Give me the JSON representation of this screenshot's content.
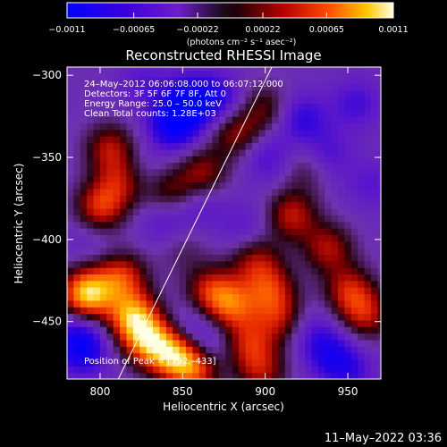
{
  "chart_data": {
    "type": "heatmap",
    "title": "Reconstructed RHESSI Image",
    "xlabel": "Heliocentric X (arcsec)",
    "ylabel": "Heliocentric Y (arcsec)",
    "xlim": [
      780,
      970
    ],
    "ylim": [
      -485,
      -295
    ],
    "x_ticks": [
      800,
      850,
      900,
      950
    ],
    "y_ticks": [
      -300,
      -350,
      -400,
      -450
    ],
    "colorbar": {
      "ticks": [
        -0.0011,
        -0.00065,
        -0.00022,
        0.00022,
        0.00065,
        0.0011
      ],
      "tick_labels": [
        "-0.0011",
        "-0.00065",
        "-0.00022",
        "0.00022",
        "0.00065",
        "0.0011"
      ],
      "units": "(photons cm⁻² s⁻¹ asec⁻²)",
      "range": [
        -0.0011,
        0.0011
      ]
    },
    "annotations": [
      "24–May–2012 06:06:08.000 to 06:07:12.000",
      "Detectors: 3F 5F 6F 7F 8F, Att 0",
      "Energy Range: 25.0 – 50.0 keV",
      "Clean     Total counts: 1.28E+03"
    ],
    "peak_label": "Position of Peak = [792,–433]",
    "peak": [
      792,
      -433
    ],
    "limb_line": [
      [
        811,
        -485
      ],
      [
        904,
        -295
      ]
    ],
    "features": [
      {
        "x": 792,
        "y": -433,
        "value": 0.0011
      },
      {
        "x": 820,
        "y": -447,
        "value": 0.0009
      },
      {
        "x": 830,
        "y": -462,
        "value": 0.0008
      },
      {
        "x": 845,
        "y": -470,
        "value": 0.00075
      },
      {
        "x": 858,
        "y": -478,
        "value": 0.0007
      },
      {
        "x": 813,
        "y": -423,
        "value": 0.0006
      },
      {
        "x": 800,
        "y": -380,
        "value": 0.0006
      },
      {
        "x": 814,
        "y": -364,
        "value": 0.0005
      },
      {
        "x": 806,
        "y": -344,
        "value": 0.00045
      },
      {
        "x": 842,
        "y": -372,
        "value": 0.00035
      },
      {
        "x": 862,
        "y": -359,
        "value": 0.0004
      },
      {
        "x": 882,
        "y": -335,
        "value": 0.0004
      },
      {
        "x": 900,
        "y": -320,
        "value": 0.0003
      },
      {
        "x": 916,
        "y": -385,
        "value": 0.0005
      },
      {
        "x": 938,
        "y": -405,
        "value": 0.00045
      },
      {
        "x": 951,
        "y": -431,
        "value": 0.0005
      },
      {
        "x": 961,
        "y": -446,
        "value": 0.00045
      },
      {
        "x": 894,
        "y": -412,
        "value": 0.0004
      },
      {
        "x": 903,
        "y": -430,
        "value": 0.0005
      },
      {
        "x": 909,
        "y": -448,
        "value": 0.0004
      },
      {
        "x": 880,
        "y": -440,
        "value": 0.0006
      },
      {
        "x": 867,
        "y": -431,
        "value": 0.0005
      },
      {
        "x": 890,
        "y": -463,
        "value": 0.00045
      },
      {
        "x": 898,
        "y": -480,
        "value": 0.0004
      },
      {
        "x": 925,
        "y": -356,
        "value": 0.0002
      },
      {
        "x": 850,
        "y": -405,
        "value": 0.0001
      },
      {
        "x": 826,
        "y": -305,
        "value": -0.0004
      },
      {
        "x": 822,
        "y": -360,
        "value": -0.0004
      },
      {
        "x": 845,
        "y": -330,
        "value": -0.0009
      },
      {
        "x": 854,
        "y": -315,
        "value": -0.0008
      },
      {
        "x": 872,
        "y": -314,
        "value": -0.0006
      },
      {
        "x": 840,
        "y": -388,
        "value": -0.0005
      },
      {
        "x": 861,
        "y": -379,
        "value": -0.0004
      },
      {
        "x": 902,
        "y": -350,
        "value": -0.0005
      },
      {
        "x": 888,
        "y": -393,
        "value": -0.0004
      },
      {
        "x": 922,
        "y": -326,
        "value": -0.0006
      },
      {
        "x": 937,
        "y": -348,
        "value": -0.0005
      },
      {
        "x": 955,
        "y": -317,
        "value": -0.0005
      },
      {
        "x": 964,
        "y": -366,
        "value": -0.0004
      },
      {
        "x": 855,
        "y": -453,
        "value": -0.0004
      },
      {
        "x": 865,
        "y": -466,
        "value": -0.0005
      },
      {
        "x": 939,
        "y": -469,
        "value": -0.0006
      },
      {
        "x": 951,
        "y": -480,
        "value": -0.0005
      },
      {
        "x": 928,
        "y": -455,
        "value": -0.0004
      },
      {
        "x": 790,
        "y": -469,
        "value": -0.0006
      },
      {
        "x": 786,
        "y": -458,
        "value": -0.0006
      },
      {
        "x": 793,
        "y": -400,
        "value": -0.0003
      }
    ]
  },
  "timestamp": "11–May–2022 03:36"
}
